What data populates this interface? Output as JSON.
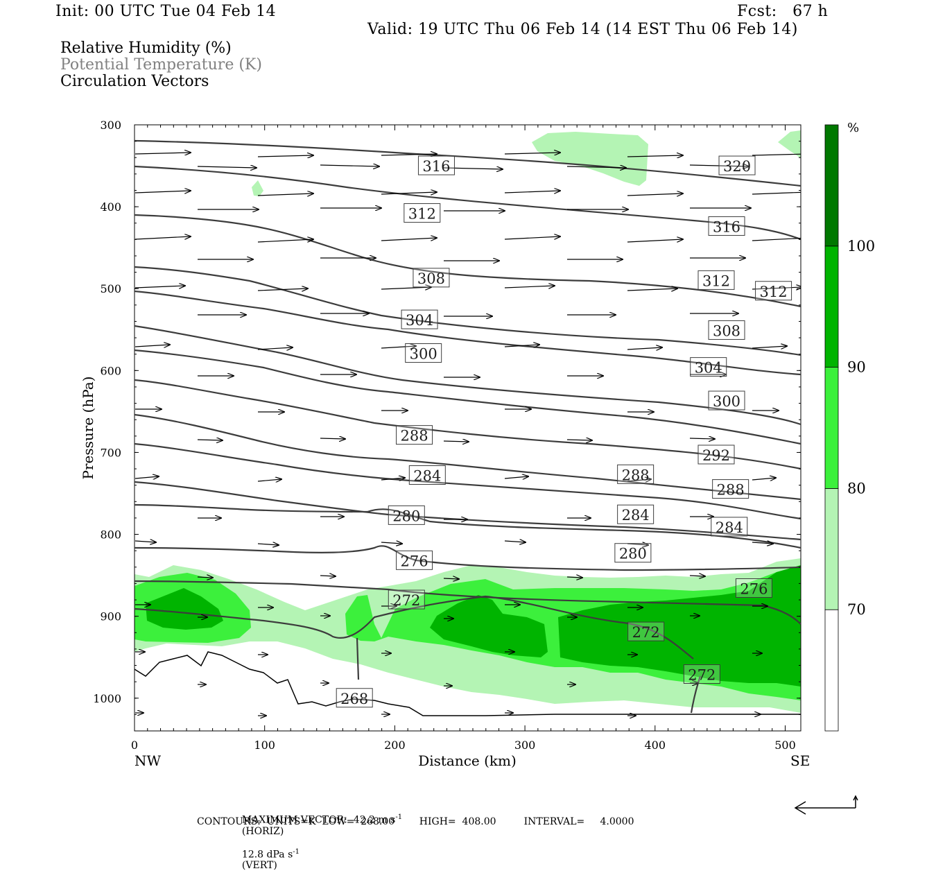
{
  "header": {
    "init": "Init: 00 UTC Tue 04 Feb 14",
    "fcst": "Fcst:   67 h",
    "valid": "Valid: 19 UTC Thu 06 Feb 14 (14 EST Thu 06 Feb 14)"
  },
  "fields": [
    {
      "label": "Relative Humidity (%)",
      "color": "#000000"
    },
    {
      "label": "Potential Temperature (K)",
      "color": "#808080"
    },
    {
      "label": "Circulation Vectors",
      "color": "#000000"
    }
  ],
  "footer": {
    "max_vector_prefix": "MAXIMUM VECTOR:  42.2 m s",
    "max_vector_horiz": "(HORIZ)",
    "max_vector_vert_prefix": "12.8 dPa s",
    "max_vector_vert": "(VERT)",
    "exponent": "-1",
    "contours": "CONTOURS:  UNITS=K  LOW=  268.00        HIGH=  408.00         INTERVAL=     4.0000"
  },
  "chart_data": {
    "type": "cross-section",
    "xlabel": "Distance (km)",
    "ylabel": "Pressure (hPa)",
    "xlim": [
      0,
      512
    ],
    "ylim": [
      1040,
      300
    ],
    "x_ticks": [
      0,
      100,
      200,
      300,
      400,
      500
    ],
    "y_ticks": [
      300,
      400,
      500,
      600,
      700,
      800,
      900,
      1000
    ],
    "x_end_labels": {
      "left": "NW",
      "right": "SE"
    },
    "colorbar": {
      "unit": "%",
      "levels": [
        70,
        80,
        90,
        100
      ],
      "colors": [
        "#ffffff",
        "#b4f4b4",
        "#3cf03c",
        "#00b400",
        "#007800"
      ]
    },
    "rh_colors": {
      "c70": "#b4f4b4",
      "c80": "#3cf03c",
      "c90": "#00b400"
    },
    "theta_contour_color": "#3c3c3c",
    "theta_labels": [
      {
        "text": "316",
        "x": 232,
        "p": 350
      },
      {
        "text": "320",
        "x": 463,
        "p": 350
      },
      {
        "text": "312",
        "x": 221,
        "p": 408
      },
      {
        "text": "316",
        "x": 455,
        "p": 424
      },
      {
        "text": "308",
        "x": 228,
        "p": 487
      },
      {
        "text": "312",
        "x": 447,
        "p": 490
      },
      {
        "text": "312",
        "x": 491,
        "p": 503
      },
      {
        "text": "304",
        "x": 219,
        "p": 538
      },
      {
        "text": "308",
        "x": 455,
        "p": 551
      },
      {
        "text": "300",
        "x": 222,
        "p": 579
      },
      {
        "text": "304",
        "x": 441,
        "p": 596
      },
      {
        "text": "300",
        "x": 455,
        "p": 637
      },
      {
        "text": "288",
        "x": 215,
        "p": 679
      },
      {
        "text": "292",
        "x": 447,
        "p": 703
      },
      {
        "text": "284",
        "x": 225,
        "p": 728
      },
      {
        "text": "288",
        "x": 385,
        "p": 727
      },
      {
        "text": "288",
        "x": 458,
        "p": 745
      },
      {
        "text": "280",
        "x": 209,
        "p": 777
      },
      {
        "text": "284",
        "x": 385,
        "p": 776
      },
      {
        "text": "284",
        "x": 457,
        "p": 791
      },
      {
        "text": "276",
        "x": 215,
        "p": 832
      },
      {
        "text": "280",
        "x": 383,
        "p": 823
      },
      {
        "text": "272",
        "x": 209,
        "p": 880
      },
      {
        "text": "276",
        "x": 476,
        "p": 866
      },
      {
        "text": "272",
        "x": 393,
        "p": 919
      },
      {
        "text": "272",
        "x": 436,
        "p": 971
      },
      {
        "text": "268",
        "x": 169,
        "p": 1000
      }
    ]
  }
}
